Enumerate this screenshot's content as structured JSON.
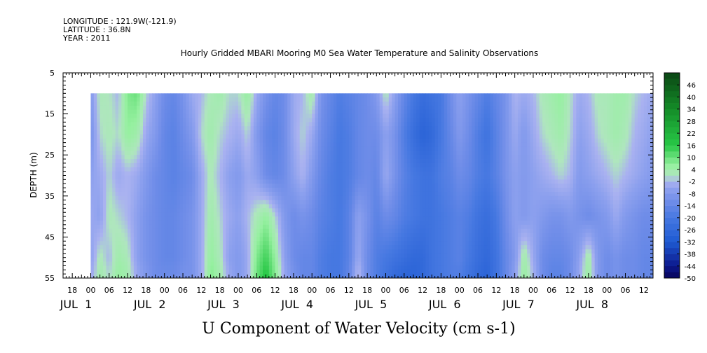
{
  "header": {
    "longitude": "LONGITUDE : 121.9W(-121.9)",
    "latitude": "LATITUDE : 36.8N",
    "year": "YEAR : 2011"
  },
  "chart_data": {
    "type": "heatmap",
    "title": "Hourly Gridded MBARI Mooring M0 Sea Water Temperature and Salinity Observations",
    "xlabel": "U Component of Water Velocity (cm s-1)",
    "ylabel": "DEPTH (m)",
    "ylim": [
      55,
      5
    ],
    "xlim_hours": [
      -9,
      183
    ],
    "y_ticks": [
      5,
      15,
      25,
      35,
      45,
      55
    ],
    "hour_tick_labels": [
      "18",
      "00",
      "06",
      "12",
      "18",
      "00",
      "06",
      "12",
      "18",
      "00",
      "06",
      "12",
      "18",
      "00",
      "06",
      "12",
      "18",
      "00",
      "06",
      "12",
      "18",
      "00",
      "06",
      "12",
      "18",
      "00",
      "06",
      "12",
      "18",
      "00",
      "06",
      "12"
    ],
    "day_labels": [
      "JUL  1",
      "JUL  2",
      "JUL  3",
      "JUL  4",
      "JUL  5",
      "JUL  6",
      "JUL  7",
      "JUL  8"
    ],
    "colorbar_labels": [
      "46",
      "40",
      "34",
      "28",
      "22",
      "16",
      "10",
      "4",
      "-2",
      "-8",
      "-14",
      "-20",
      "-26",
      "-32",
      "-38",
      "-44",
      "-50"
    ],
    "colorbar_range": [
      -50,
      52
    ],
    "data_depth_range": [
      10,
      55
    ],
    "data_time_range_hours": [
      0,
      183
    ],
    "value_columns_hours": [
      0,
      3,
      6,
      9,
      12,
      15,
      18,
      21,
      24,
      27,
      30,
      33,
      36,
      39,
      42,
      45,
      48,
      51,
      54,
      57,
      60,
      63,
      66,
      69,
      72,
      75,
      78,
      81,
      84,
      87,
      90,
      93,
      96,
      99,
      102,
      105,
      108,
      111,
      114,
      117,
      120,
      123,
      126,
      129,
      132,
      135,
      138,
      141,
      144,
      147,
      150,
      153,
      156,
      159,
      162,
      165,
      168,
      171,
      174,
      177,
      180,
      183
    ],
    "value_rows_depth_m": [
      10,
      20,
      30,
      40,
      50,
      55
    ],
    "values": [
      [
        -8,
        2,
        1,
        -2,
        8,
        10,
        0,
        -6,
        -12,
        -14,
        -10,
        -4,
        -2,
        2,
        4,
        0,
        0,
        6,
        -4,
        -10,
        -14,
        -12,
        -4,
        -2,
        4,
        -10,
        -14,
        -18,
        -16,
        -14,
        -12,
        -8,
        2,
        -6,
        -14,
        -20,
        -24,
        -22,
        -20,
        -12,
        -6,
        -10,
        -14,
        -18,
        -14,
        -10,
        -2,
        -4,
        -2,
        2,
        4,
        6,
        1,
        -4,
        -2,
        2,
        2,
        4,
        4,
        0,
        -2,
        -4
      ],
      [
        -10,
        0,
        2,
        0,
        6,
        4,
        -4,
        -8,
        -14,
        -16,
        -12,
        -8,
        0,
        4,
        0,
        -2,
        -4,
        0,
        -8,
        -14,
        -16,
        -12,
        -4,
        0,
        -4,
        -12,
        -16,
        -20,
        -18,
        -14,
        -12,
        -12,
        -6,
        -10,
        -18,
        -24,
        -28,
        -26,
        -20,
        -14,
        -8,
        -12,
        -18,
        -22,
        -16,
        -10,
        -4,
        -8,
        -4,
        0,
        2,
        4,
        0,
        -6,
        -4,
        0,
        2,
        4,
        2,
        -2,
        -4,
        -6
      ],
      [
        -6,
        -4,
        0,
        -4,
        -2,
        -4,
        -8,
        -12,
        -14,
        -16,
        -14,
        -12,
        -4,
        2,
        -2,
        -6,
        -8,
        -4,
        -6,
        -12,
        -14,
        -12,
        -6,
        -2,
        -8,
        -14,
        -18,
        -20,
        -18,
        -14,
        -12,
        -14,
        -4,
        -10,
        -16,
        -20,
        -22,
        -22,
        -18,
        -16,
        -12,
        -14,
        -18,
        -20,
        -16,
        -10,
        -6,
        -8,
        -6,
        -4,
        -2,
        0,
        -2,
        -8,
        -6,
        -4,
        -2,
        0,
        -2,
        -4,
        -6,
        -8
      ],
      [
        -4,
        -6,
        2,
        0,
        -2,
        -6,
        -10,
        -12,
        -14,
        -14,
        -12,
        -10,
        -4,
        4,
        0,
        -4,
        -6,
        -2,
        2,
        6,
        0,
        -8,
        -12,
        -10,
        -12,
        -16,
        -18,
        -20,
        -16,
        -6,
        -10,
        -16,
        -12,
        -14,
        -18,
        -20,
        -22,
        -22,
        -20,
        -18,
        -16,
        -18,
        -22,
        -24,
        -20,
        -12,
        -6,
        -8,
        -6,
        -8,
        -10,
        -10,
        -8,
        -10,
        -12,
        -10,
        -8,
        -4,
        -8,
        -10,
        -12,
        -12
      ],
      [
        -6,
        2,
        -2,
        4,
        2,
        -6,
        -10,
        -12,
        -14,
        -14,
        -12,
        -10,
        -4,
        6,
        2,
        -6,
        -8,
        -4,
        8,
        14,
        6,
        -6,
        -12,
        -14,
        -14,
        -18,
        -20,
        -20,
        -16,
        -4,
        -12,
        -18,
        -20,
        -22,
        -24,
        -26,
        -26,
        -22,
        -20,
        -18,
        -16,
        -20,
        -24,
        -26,
        -22,
        -14,
        -8,
        4,
        -4,
        -12,
        -14,
        -14,
        -12,
        -6,
        4,
        -8,
        -12,
        -10,
        -12,
        -12,
        -14,
        -14
      ],
      [
        -4,
        4,
        0,
        6,
        4,
        -4,
        -8,
        -12,
        -12,
        -12,
        -10,
        -10,
        -4,
        8,
        4,
        -4,
        -8,
        -4,
        10,
        18,
        8,
        -4,
        -10,
        -14,
        -14,
        -18,
        -20,
        -20,
        -14,
        0,
        -12,
        -18,
        -22,
        -26,
        -28,
        -28,
        -26,
        -22,
        -20,
        -18,
        -18,
        -22,
        -26,
        -28,
        -22,
        -14,
        -6,
        6,
        -2,
        -12,
        -16,
        -16,
        -12,
        -4,
        6,
        -8,
        -12,
        -10,
        -12,
        -12,
        -14,
        -14
      ]
    ]
  }
}
